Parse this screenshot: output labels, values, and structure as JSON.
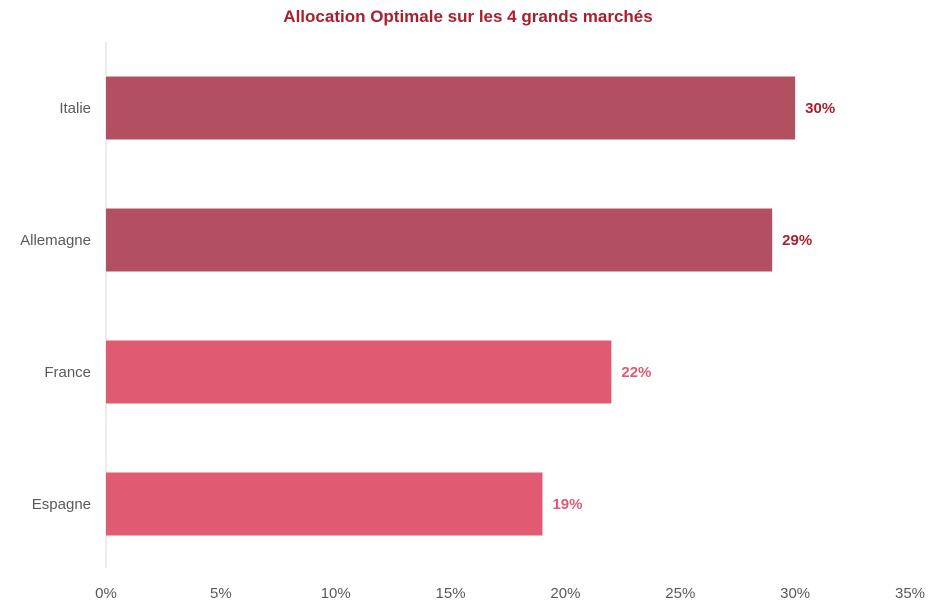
{
  "chart_data": {
    "type": "bar",
    "orientation": "horizontal",
    "title": "Allocation Optimale sur les 4 grands marchés",
    "categories": [
      "Italie",
      "Allemagne",
      "France",
      "Espagne"
    ],
    "values": [
      30,
      29,
      22,
      19
    ],
    "value_labels": [
      "30%",
      "29%",
      "22%",
      "19%"
    ],
    "bar_colors": [
      "#b24f61",
      "#b24f61",
      "#e05a72",
      "#e05a72"
    ],
    "label_colors": [
      "#a8202f",
      "#a8202f",
      "#e05a72",
      "#e05a72"
    ],
    "title_color": "#a8202f",
    "xlim": [
      0,
      35
    ],
    "xticks": [
      0,
      5,
      10,
      15,
      20,
      25,
      30,
      35
    ],
    "xtick_labels": [
      "0%",
      "5%",
      "10%",
      "15%",
      "20%",
      "25%",
      "30%",
      "35%"
    ],
    "xlabel": "",
    "ylabel": "",
    "grid": false
  }
}
